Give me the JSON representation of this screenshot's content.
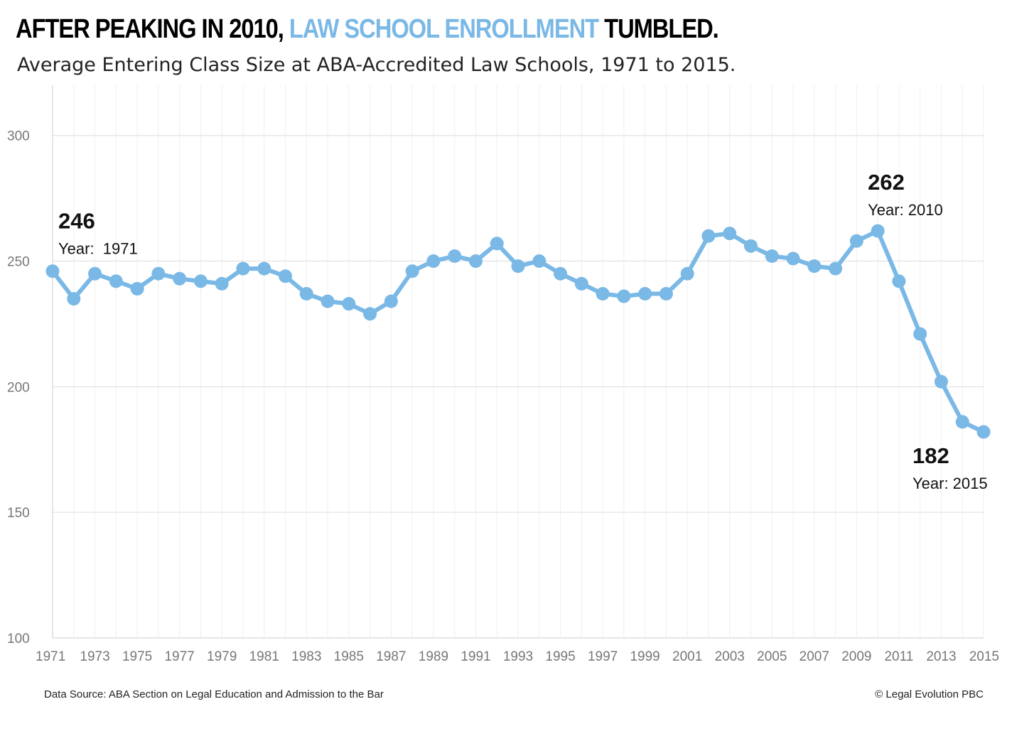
{
  "title": {
    "part1": "AFTER PEAKING IN 2010,",
    "highlight": "LAW SCHOOL ENROLLMENT",
    "part2": "TUMBLED."
  },
  "subtitle": "Average Entering Class Size at ABA-Accredited Law Schools, 1971 to 2015.",
  "footer": {
    "source": "Data Source: ABA Section on Legal Education and Admission to the Bar",
    "copyright": "© Legal Evolution PBC"
  },
  "colors": {
    "line": "#7ab8e6",
    "highlight": "#7ab8e6",
    "grid": "#dddddd"
  },
  "chart_data": {
    "type": "line",
    "title": "AFTER PEAKING IN 2010, LAW SCHOOL ENROLLMENT TUMBLED.",
    "subtitle": "Average Entering Class Size at ABA-Accredited Law Schools, 1971 to 2015.",
    "xlabel": "",
    "ylabel": "",
    "ylim": [
      100,
      320
    ],
    "yticks": [
      100,
      150,
      200,
      250,
      300
    ],
    "xticks": [
      1971,
      1973,
      1975,
      1977,
      1979,
      1981,
      1983,
      1985,
      1987,
      1989,
      1991,
      1993,
      1995,
      1997,
      1999,
      2001,
      2003,
      2005,
      2007,
      2009,
      2011,
      2013,
      2015
    ],
    "grid": true,
    "x": [
      1971,
      1972,
      1973,
      1974,
      1975,
      1976,
      1977,
      1978,
      1979,
      1980,
      1981,
      1982,
      1983,
      1984,
      1985,
      1986,
      1987,
      1988,
      1989,
      1990,
      1991,
      1992,
      1993,
      1994,
      1995,
      1996,
      1997,
      1998,
      1999,
      2000,
      2001,
      2002,
      2003,
      2004,
      2005,
      2006,
      2007,
      2008,
      2009,
      2010,
      2011,
      2012,
      2013,
      2014,
      2015
    ],
    "series": [
      {
        "values": [
          246,
          235,
          245,
          242,
          239,
          245,
          243,
          242,
          241,
          247,
          247,
          244,
          237,
          234,
          233,
          229,
          234,
          246,
          250,
          252,
          250,
          257,
          248,
          250,
          245,
          241,
          237,
          236,
          237,
          237,
          245,
          260,
          261,
          256,
          252,
          251,
          248,
          247,
          258,
          262,
          242,
          221,
          202,
          186,
          182
        ]
      }
    ],
    "annotations": [
      {
        "value": "246",
        "label": "Year:  1971",
        "x": 1971,
        "y": 246
      },
      {
        "value": "262",
        "label": "Year: 2010",
        "x": 2010,
        "y": 262
      },
      {
        "value": "182",
        "label": "Year: 2015",
        "x": 2015,
        "y": 182
      }
    ]
  }
}
